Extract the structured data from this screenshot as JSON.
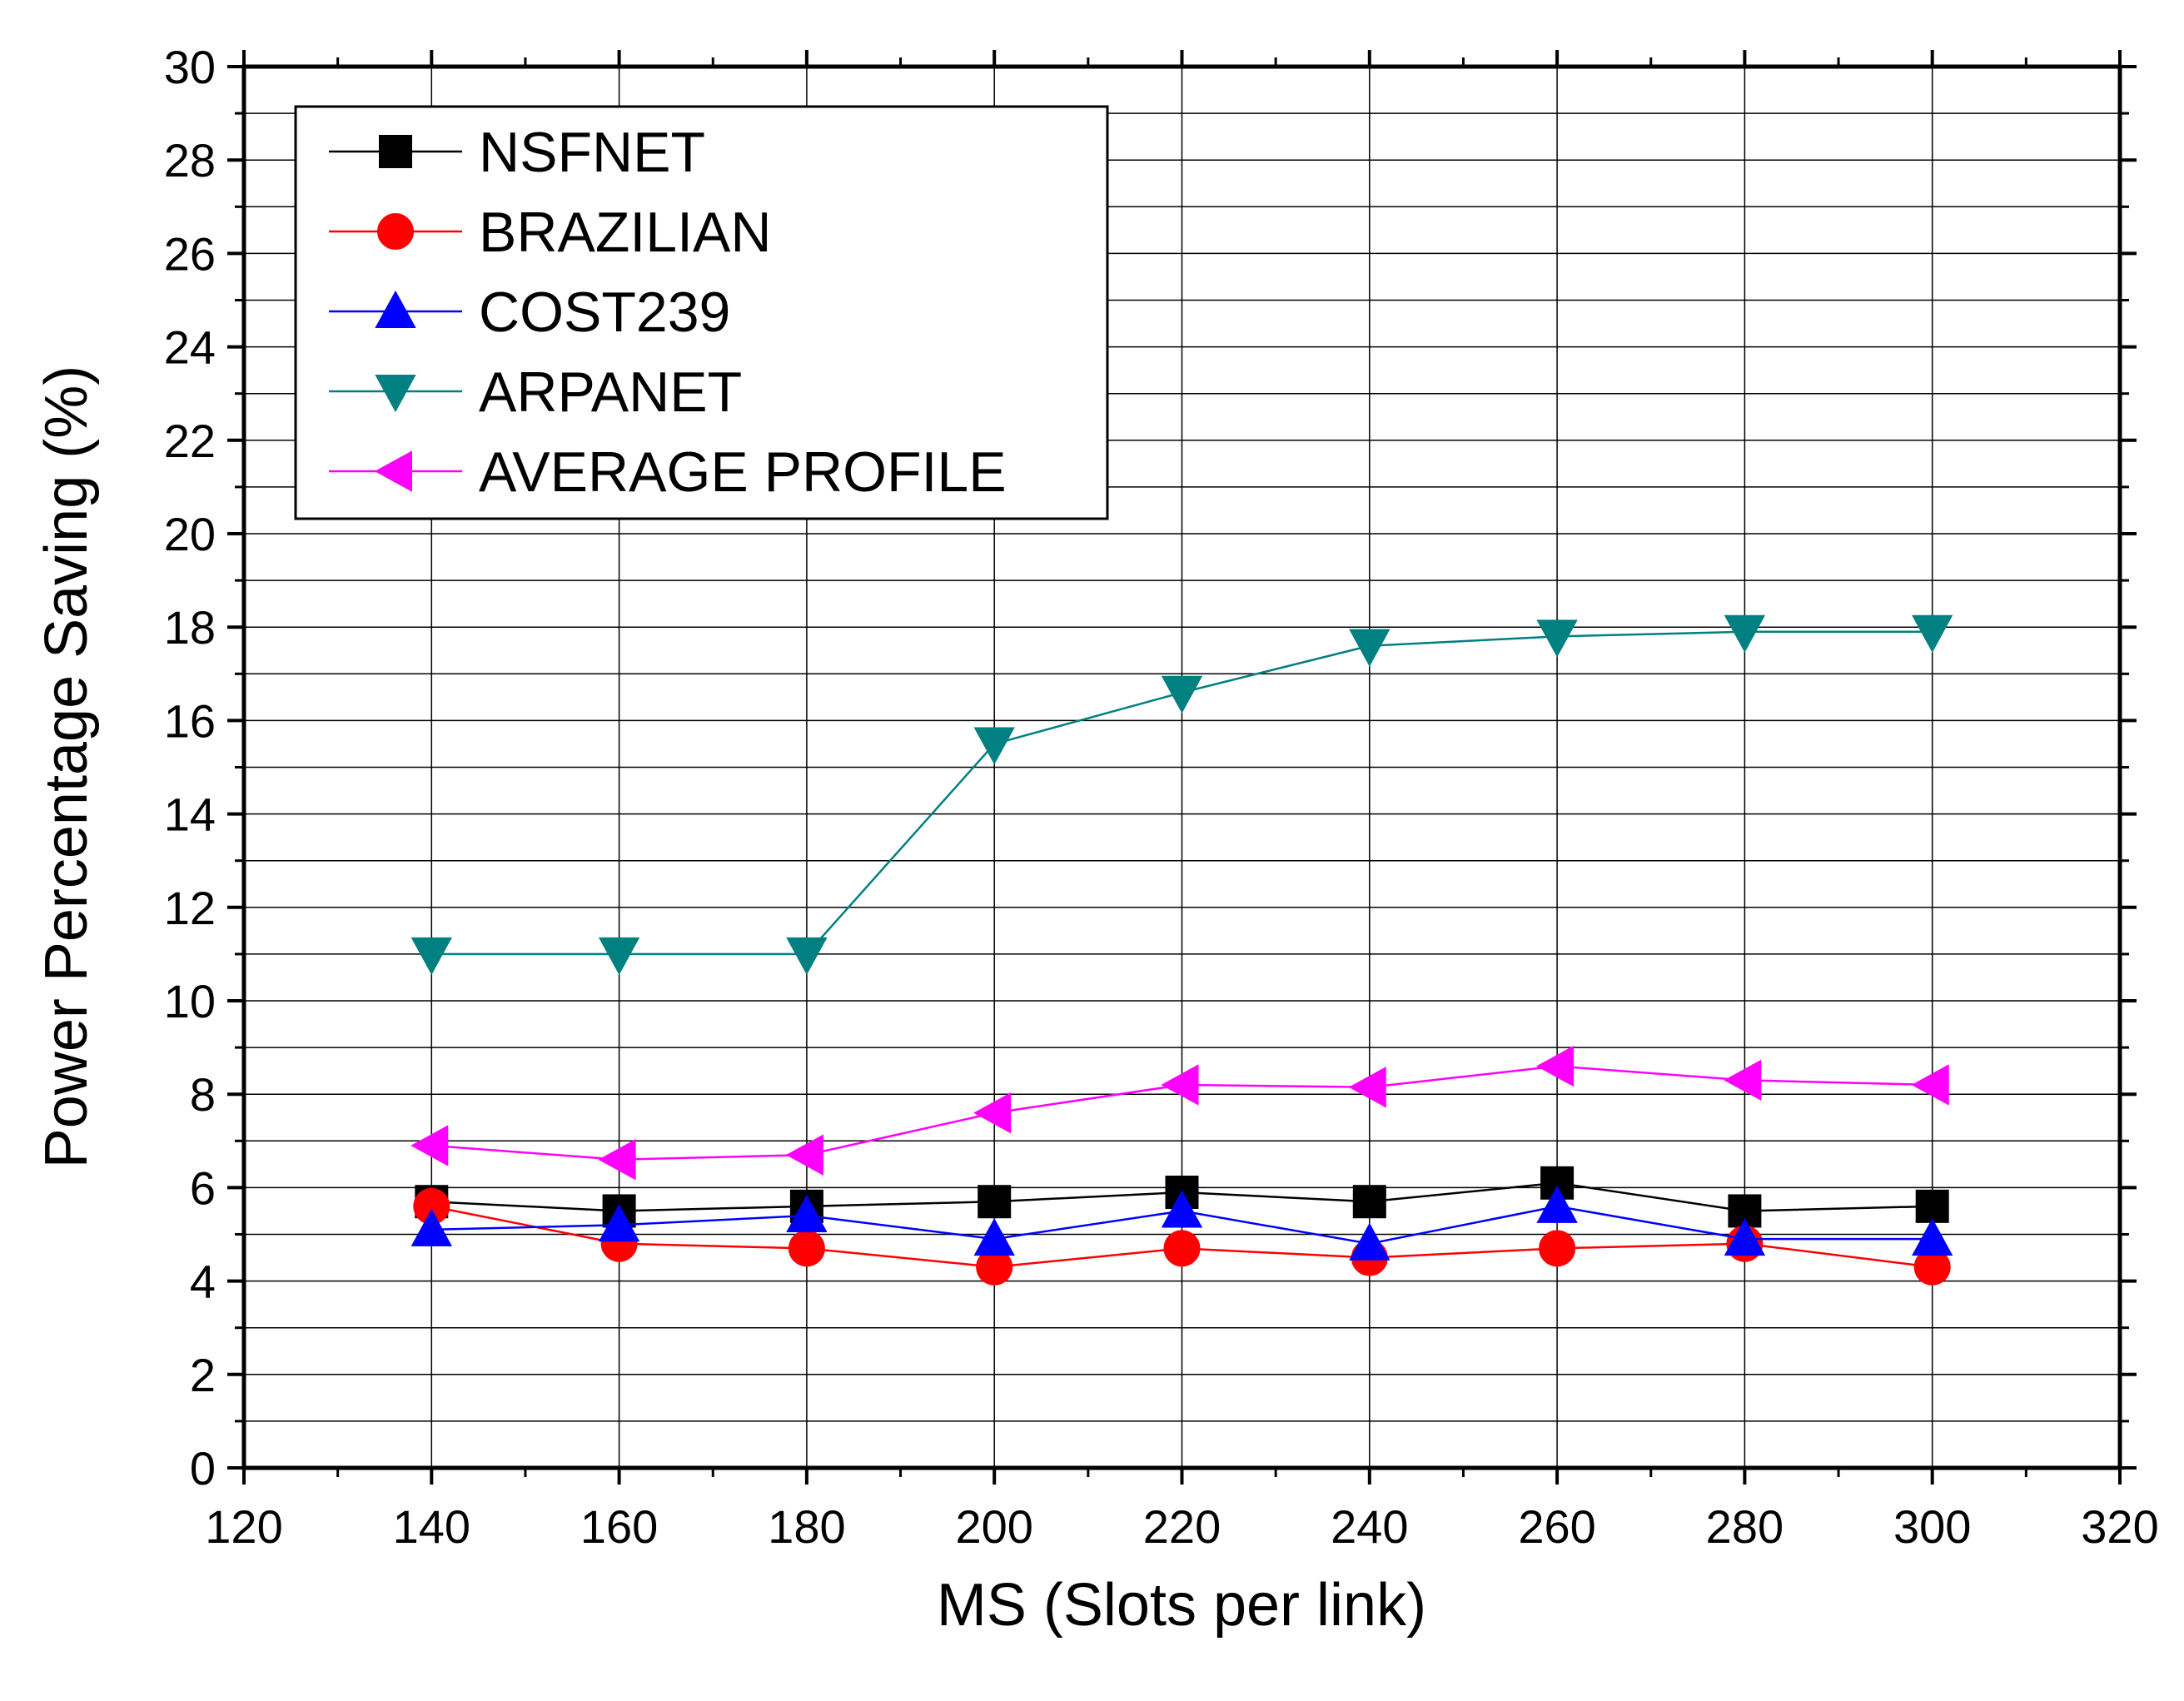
{
  "chart_data": {
    "type": "line",
    "title": "",
    "xlabel": "MS (Slots per link)",
    "ylabel": "Power Percentage Saving (%)",
    "xlim": [
      120,
      320
    ],
    "ylim": [
      0,
      30
    ],
    "xticks": [
      120,
      140,
      160,
      180,
      200,
      220,
      240,
      260,
      280,
      300,
      320
    ],
    "yticks": [
      0,
      2,
      4,
      6,
      8,
      10,
      12,
      14,
      16,
      18,
      20,
      22,
      24,
      26,
      28,
      30
    ],
    "grid": true,
    "legend_position": "top-left",
    "x": [
      140,
      160,
      180,
      200,
      220,
      240,
      260,
      280,
      300
    ],
    "series": [
      {
        "name": "NSFNET",
        "color": "#000000",
        "marker": "square",
        "values": [
          5.7,
          5.5,
          5.6,
          5.7,
          5.9,
          5.7,
          6.1,
          5.5,
          5.6
        ]
      },
      {
        "name": "BRAZILIAN",
        "color": "#ff0000",
        "marker": "circle",
        "values": [
          5.6,
          4.8,
          4.7,
          4.3,
          4.7,
          4.5,
          4.7,
          4.8,
          4.3
        ]
      },
      {
        "name": "COST239",
        "color": "#0000ff",
        "marker": "triangle-up",
        "values": [
          5.1,
          5.2,
          5.4,
          4.9,
          5.5,
          4.8,
          5.6,
          4.9,
          4.9
        ]
      },
      {
        "name": "ARPANET",
        "color": "#008080",
        "marker": "triangle-down",
        "values": [
          11.0,
          11.0,
          11.0,
          15.5,
          16.6,
          17.6,
          17.8,
          17.9,
          17.9
        ]
      },
      {
        "name": "AVERAGE PROFILE",
        "color": "#ff00ff",
        "marker": "triangle-left",
        "values": [
          6.9,
          6.6,
          6.7,
          7.6,
          8.2,
          8.15,
          8.6,
          8.3,
          8.2
        ]
      }
    ]
  }
}
